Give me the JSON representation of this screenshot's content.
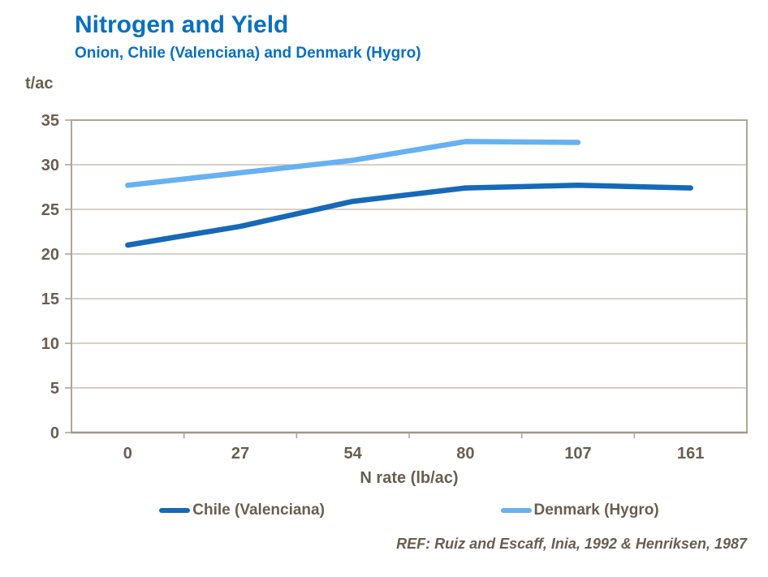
{
  "title": "Nitrogen and Yield",
  "subtitle": "Onion, Chile (Valenciana) and Denmark (Hygro)",
  "footer": {
    "ref": "REF: Ruiz and Escaff, Inia, 1992 & Henriksen, 1987"
  },
  "colors": {
    "title": "#0870C0",
    "text": "#695E50",
    "gridline": "#C9C0B4",
    "border": "#AFA698",
    "axis": "#A0968A",
    "background": "#FFFFFF",
    "chile_line": "#1569B8",
    "denmark_line": "#66B1F1"
  },
  "chart_data": {
    "type": "line",
    "title": "Nitrogen and Yield",
    "subtitle": "Onion, Chile (Valenciana) and Denmark (Hygro)",
    "xlabel": "N rate (lb/ac)",
    "ylabel": "t/ac",
    "categories": [
      "0",
      "27",
      "54",
      "80",
      "107",
      "161"
    ],
    "series": [
      {
        "name": "Chile (Valenciana)",
        "color": "#1569B8",
        "values": [
          21.0,
          23.1,
          25.9,
          27.4,
          27.7,
          27.4
        ]
      },
      {
        "name": "Denmark (Hygro)",
        "color": "#66B1F1",
        "values": [
          27.7,
          29.1,
          30.5,
          32.6,
          32.5
        ]
      }
    ],
    "ylim": [
      0,
      35
    ],
    "ytick_step": 5,
    "grid": "horizontal",
    "legend_position": "bottom"
  }
}
